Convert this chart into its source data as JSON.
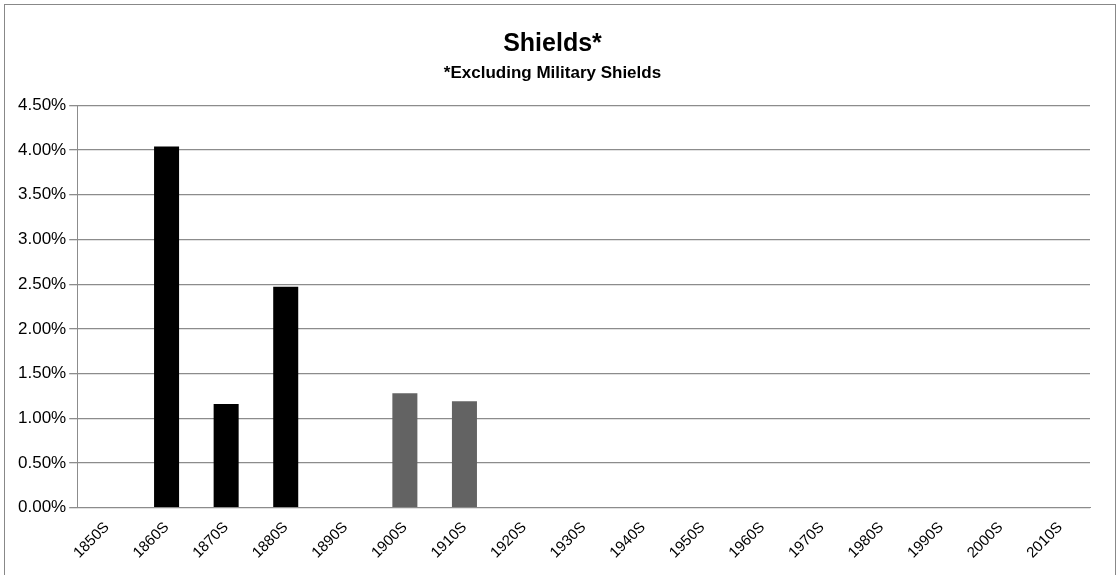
{
  "chart_data": {
    "type": "bar",
    "title": "Shields*",
    "subtitle": "*Excluding Military Shields",
    "categories": [
      "1850S",
      "1860S",
      "1870S",
      "1880S",
      "1890S",
      "1900S",
      "1910S",
      "1920S",
      "1930S",
      "1940S",
      "1950S",
      "1960S",
      "1970S",
      "1980S",
      "1990S",
      "2000S",
      "2010S"
    ],
    "values": [
      0,
      4.04,
      1.16,
      2.47,
      0,
      1.28,
      1.19,
      0,
      0,
      0,
      0,
      0,
      0,
      0,
      0,
      0,
      0
    ],
    "colors": [
      "#000000",
      "#000000",
      "#000000",
      "#000000",
      "#000000",
      "#636363",
      "#636363",
      "#636363",
      "#636363",
      "#636363",
      "#636363",
      "#636363",
      "#636363",
      "#636363",
      "#636363",
      "#636363",
      "#636363"
    ],
    "ylim": [
      0,
      4.5
    ],
    "yticks": [
      {
        "value": 0,
        "label": "0.00%"
      },
      {
        "value": 0.5,
        "label": "0.50%"
      },
      {
        "value": 1,
        "label": "1.00%"
      },
      {
        "value": 1.5,
        "label": "1.50%"
      },
      {
        "value": 2,
        "label": "2.00%"
      },
      {
        "value": 2.5,
        "label": "2.50%"
      },
      {
        "value": 3,
        "label": "3.00%"
      },
      {
        "value": 3.5,
        "label": "3.50%"
      },
      {
        "value": 4,
        "label": "4.00%"
      },
      {
        "value": 4.5,
        "label": "4.50%"
      }
    ],
    "grid": "y",
    "legend": false
  }
}
